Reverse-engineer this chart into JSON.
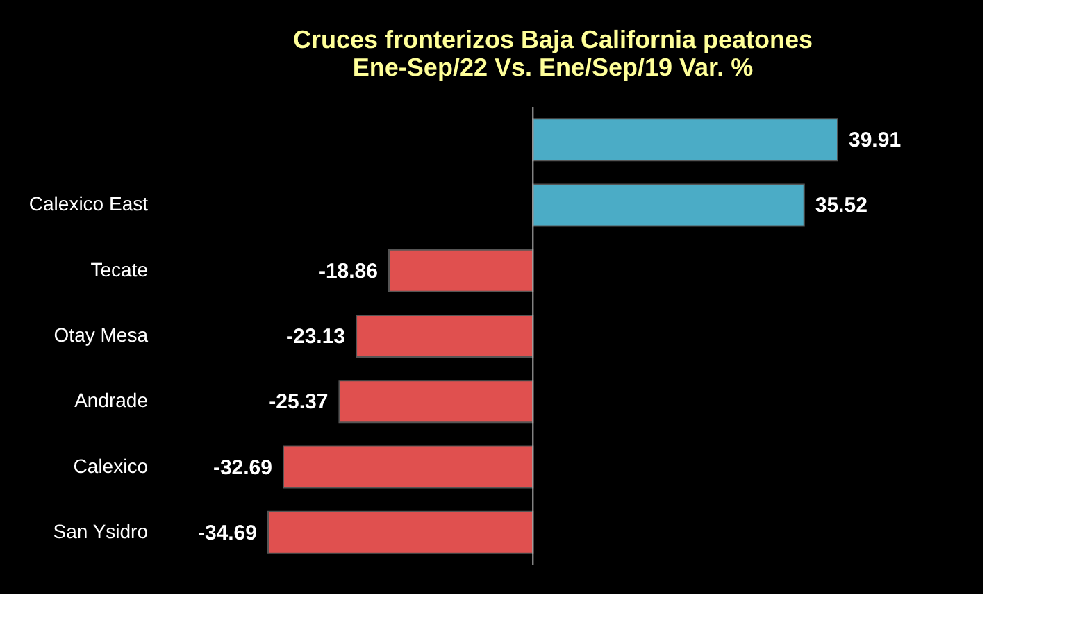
{
  "chart_data": {
    "type": "bar",
    "orientation": "horizontal",
    "title": [
      "Cruces fronterizos Baja California peatones",
      "Ene-Sep/22 Vs. Ene/Sep/19 Var. %"
    ],
    "categories": [
      null,
      "Calexico East",
      "Tecate",
      "Otay Mesa",
      "Andrade",
      "Calexico",
      "San Ysidro"
    ],
    "values": [
      39.91,
      35.52,
      -18.86,
      -23.13,
      -25.37,
      -32.69,
      -34.69
    ],
    "colors": [
      "#4bacc6",
      "#4bacc6",
      "#e0504f",
      "#e0504f",
      "#e0504f",
      "#e0504f",
      "#e0504f"
    ],
    "data_labels": true,
    "grid": false
  }
}
